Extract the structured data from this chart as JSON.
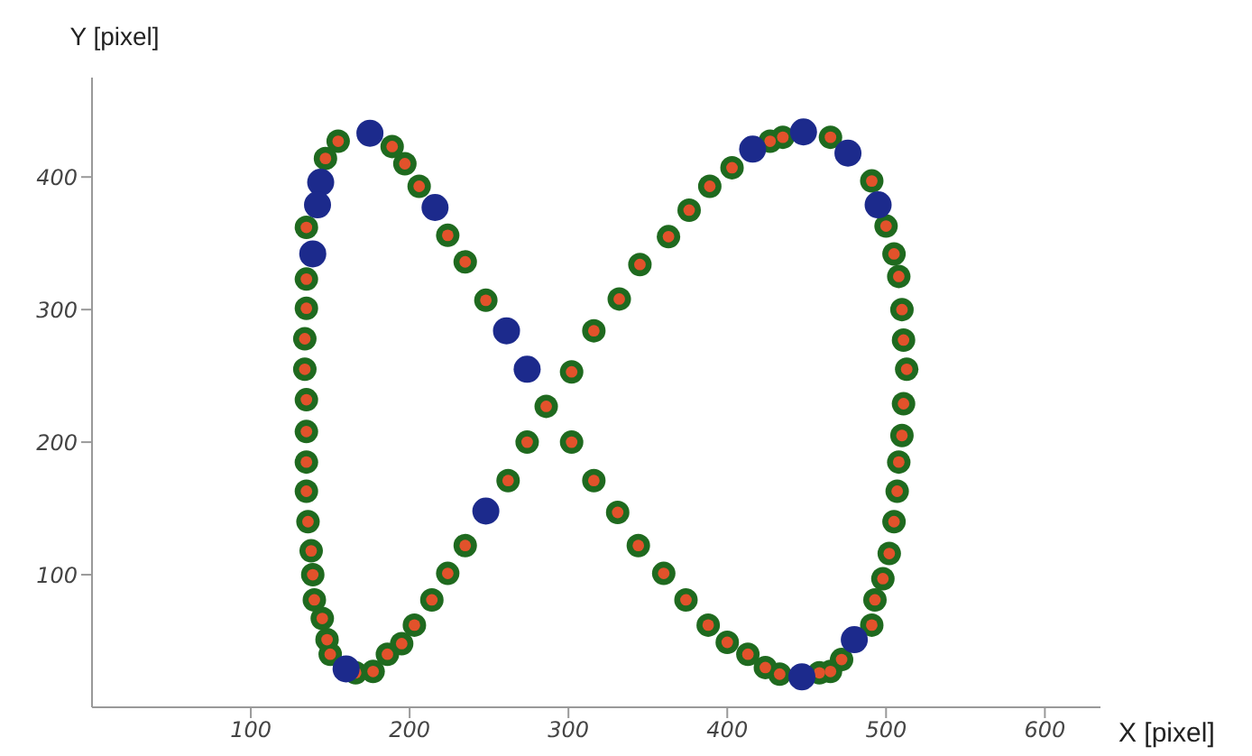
{
  "chart_data": {
    "type": "scatter",
    "xlabel": "X [pixel]",
    "ylabel": "Y [pixel]",
    "xlim": [
      0,
      635
    ],
    "ylim": [
      0,
      475
    ],
    "xticks": [
      100,
      200,
      300,
      400,
      500,
      600
    ],
    "yticks": [
      100,
      200,
      300,
      400
    ],
    "grid": false,
    "legend": false,
    "marker": "circle",
    "series": [
      {
        "color": "#1f6a1f",
        "x": [
          286,
          302,
          316,
          332,
          345,
          363,
          376,
          389,
          403,
          427,
          435,
          465,
          491,
          500,
          505,
          508,
          510,
          511,
          513,
          511,
          510,
          508,
          507,
          505,
          502,
          498,
          493,
          491,
          472,
          465,
          458,
          433,
          424,
          413,
          400,
          388,
          374,
          360,
          344,
          331,
          316,
          302,
          248,
          235,
          224,
          206,
          197,
          189,
          155,
          147,
          135,
          135,
          135,
          134,
          134,
          135,
          135,
          135,
          135,
          136,
          138,
          139,
          140,
          145,
          148,
          150,
          166,
          177,
          186,
          195,
          203,
          214,
          224,
          235,
          262,
          274
        ],
        "values": [
          227,
          253,
          284,
          308,
          334,
          355,
          375,
          393,
          407,
          427,
          430,
          430,
          397,
          363,
          342,
          325,
          300,
          277,
          255,
          229,
          205,
          185,
          163,
          140,
          116,
          97,
          81,
          62,
          36,
          27,
          26,
          25,
          30,
          40,
          49,
          62,
          81,
          101,
          122,
          147,
          171,
          200,
          307,
          336,
          356,
          393,
          410,
          423,
          427,
          414,
          362,
          323,
          301,
          278,
          255,
          232,
          208,
          185,
          163,
          140,
          118,
          100,
          81,
          67,
          51,
          40,
          26,
          27,
          40,
          48,
          62,
          81,
          101,
          122,
          171,
          200
        ]
      },
      {
        "color": "#e2522b",
        "x": [
          286,
          302,
          316,
          332,
          345,
          363,
          376,
          389,
          403,
          427,
          435,
          465,
          491,
          500,
          505,
          508,
          510,
          511,
          513,
          511,
          510,
          508,
          507,
          505,
          502,
          498,
          493,
          491,
          472,
          465,
          458,
          433,
          424,
          413,
          400,
          388,
          374,
          360,
          344,
          331,
          316,
          302,
          248,
          235,
          224,
          206,
          197,
          189,
          155,
          147,
          135,
          135,
          135,
          134,
          134,
          135,
          135,
          135,
          135,
          136,
          138,
          139,
          140,
          145,
          148,
          150,
          166,
          177,
          186,
          195,
          203,
          214,
          224,
          235,
          262,
          274
        ],
        "values": [
          227,
          253,
          284,
          308,
          334,
          355,
          375,
          393,
          407,
          427,
          430,
          430,
          397,
          363,
          342,
          325,
          300,
          277,
          255,
          229,
          205,
          185,
          163,
          140,
          116,
          97,
          81,
          62,
          36,
          27,
          26,
          25,
          30,
          40,
          49,
          62,
          81,
          101,
          122,
          147,
          171,
          200,
          307,
          336,
          356,
          393,
          410,
          423,
          427,
          414,
          362,
          323,
          301,
          278,
          255,
          232,
          208,
          185,
          163,
          140,
          118,
          100,
          81,
          67,
          51,
          40,
          26,
          27,
          40,
          48,
          62,
          81,
          101,
          122,
          171,
          200
        ]
      },
      {
        "color": "#1c2a8c",
        "x": [
          175,
          144,
          142,
          139,
          216,
          261,
          274,
          160,
          248,
          416,
          448,
          476,
          495,
          447,
          480
        ],
        "values": [
          433,
          396,
          379,
          342,
          377,
          284,
          255,
          29,
          148,
          421,
          434,
          418,
          379,
          23,
          51
        ]
      }
    ]
  }
}
